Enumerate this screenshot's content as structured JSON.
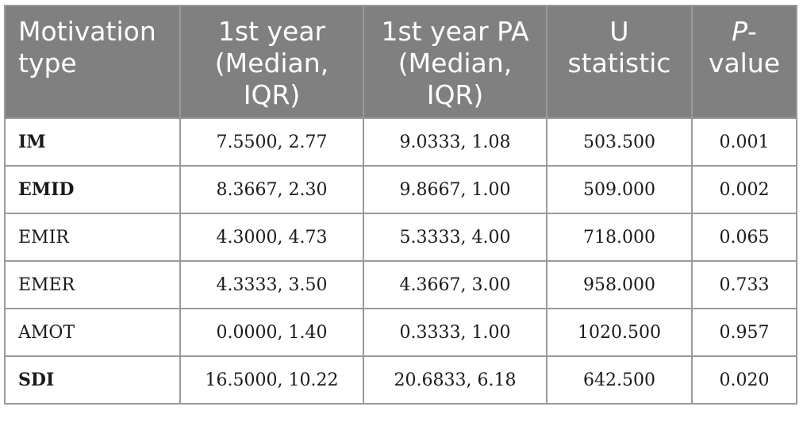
{
  "table": {
    "headers": [
      {
        "lines": [
          "Motivation",
          "type"
        ]
      },
      {
        "lines": [
          "1st year",
          "(Median,",
          "IQR)"
        ]
      },
      {
        "lines": [
          "1st year PA",
          "(Median,",
          "IQR)"
        ]
      },
      {
        "lines": [
          "U",
          "statistic"
        ]
      },
      {
        "italic": "P",
        "suffix": "-",
        "line2": "value"
      }
    ],
    "rows": [
      {
        "type": "IM",
        "bold": true,
        "first_year": "7.5500, 2.77",
        "first_year_pa": "9.0333, 1.08",
        "u": "503.500",
        "p": "0.001"
      },
      {
        "type": "EMID",
        "bold": true,
        "first_year": "8.3667, 2.30",
        "first_year_pa": "9.8667, 1.00",
        "u": "509.000",
        "p": "0.002"
      },
      {
        "type": "EMIR",
        "bold": false,
        "first_year": "4.3000, 4.73",
        "first_year_pa": "5.3333, 4.00",
        "u": "718.000",
        "p": "0.065"
      },
      {
        "type": "EMER",
        "bold": false,
        "first_year": "4.3333, 3.50",
        "first_year_pa": "4.3667, 3.00",
        "u": "958.000",
        "p": "0.733"
      },
      {
        "type": "AMOT",
        "bold": false,
        "first_year": "0.0000, 1.40",
        "first_year_pa": "0.3333, 1.00",
        "u": "1020.500",
        "p": "0.957"
      },
      {
        "type": "SDI",
        "bold": true,
        "first_year": "16.5000, 10.22",
        "first_year_pa": "20.6833, 6.18",
        "u": "642.500",
        "p": "0.020"
      }
    ]
  }
}
